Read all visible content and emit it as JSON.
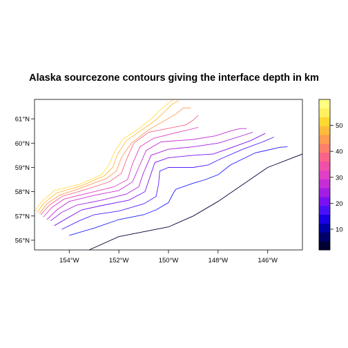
{
  "chart_data": {
    "type": "contour",
    "title": "Alaska sourcezone contours giving the interface depth in km",
    "xlabel": "",
    "ylabel": "",
    "xlim": [
      -155.4,
      -144.6
    ],
    "ylim": [
      55.6,
      61.8
    ],
    "x_ticks": [
      {
        "value": -154,
        "label": "154°W"
      },
      {
        "value": -152,
        "label": "152°W"
      },
      {
        "value": -150,
        "label": "150°W"
      },
      {
        "value": -148,
        "label": "148°W"
      },
      {
        "value": -146,
        "label": "146°W"
      }
    ],
    "y_ticks": [
      {
        "value": 56,
        "label": "56°N"
      },
      {
        "value": 57,
        "label": "57°N"
      },
      {
        "value": 58,
        "label": "58°N"
      },
      {
        "value": 59,
        "label": "59°N"
      },
      {
        "value": 60,
        "label": "60°N"
      },
      {
        "value": 61,
        "label": "61°N"
      }
    ],
    "colorkey": {
      "range": [
        2,
        60
      ],
      "ticks": [
        10,
        20,
        30,
        40,
        50
      ],
      "colors": [
        "#000033",
        "#00006b",
        "#0000a8",
        "#1a00e5",
        "#4a10f5",
        "#7a10f0",
        "#a21ee3",
        "#c42ed4",
        "#e040c4",
        "#f050a8",
        "#fa6488",
        "#fd806a",
        "#fe9c52",
        "#ffbb3c",
        "#ffd830",
        "#fff060",
        "#ffff80"
      ]
    },
    "series": [
      {
        "depth": 0,
        "color": "#000033",
        "points": [
          [
            -153.2,
            55.6
          ],
          [
            -152,
            56.15
          ],
          [
            -150,
            56.55
          ],
          [
            -149,
            57.0
          ],
          [
            -148,
            57.6
          ],
          [
            -147,
            58.3
          ],
          [
            -146,
            59.0
          ],
          [
            -144.6,
            59.55
          ]
        ]
      },
      {
        "depth": 10,
        "color": "#1a1aff",
        "points": [
          [
            -154,
            56.2
          ],
          [
            -153,
            56.5
          ],
          [
            -152,
            56.85
          ],
          [
            -151,
            57.05
          ],
          [
            -150.5,
            57.25
          ],
          [
            -150,
            57.55
          ],
          [
            -149.8,
            57.95
          ],
          [
            -149.7,
            58.1
          ],
          [
            -149,
            58.35
          ],
          [
            -148.5,
            58.5
          ],
          [
            -148,
            58.7
          ],
          [
            -147.5,
            59.1
          ],
          [
            -146.5,
            59.6
          ],
          [
            -145.5,
            59.83
          ],
          [
            -145.2,
            59.85
          ]
        ]
      },
      {
        "depth": 15,
        "color": "#4f1dff",
        "points": [
          [
            -154.3,
            56.45
          ],
          [
            -153.6,
            56.8
          ],
          [
            -153,
            57.05
          ],
          [
            -152,
            57.2
          ],
          [
            -151,
            57.5
          ],
          [
            -150.5,
            57.8
          ],
          [
            -150.4,
            58.3
          ],
          [
            -150.35,
            58.85
          ],
          [
            -150,
            59.0
          ],
          [
            -149,
            59.0
          ],
          [
            -148.4,
            59.1
          ],
          [
            -147.9,
            59.35
          ],
          [
            -147,
            59.75
          ],
          [
            -146.2,
            60.05
          ],
          [
            -145.75,
            60.25
          ]
        ]
      },
      {
        "depth": 20,
        "color": "#7a10f0",
        "points": [
          [
            -154.6,
            56.6
          ],
          [
            -154.1,
            56.9
          ],
          [
            -153.5,
            57.25
          ],
          [
            -152.6,
            57.45
          ],
          [
            -151.6,
            57.65
          ],
          [
            -150.95,
            58.0
          ],
          [
            -150.75,
            58.6
          ],
          [
            -150.55,
            59.2
          ],
          [
            -150,
            59.4
          ],
          [
            -149,
            59.5
          ],
          [
            -148.2,
            59.55
          ],
          [
            -147.5,
            59.8
          ],
          [
            -146.7,
            60.1
          ],
          [
            -146.1,
            60.4
          ]
        ]
      },
      {
        "depth": 25,
        "color": "#a21ee3",
        "points": [
          [
            -154.75,
            56.8
          ],
          [
            -154.3,
            57.15
          ],
          [
            -153.7,
            57.45
          ],
          [
            -152.7,
            57.65
          ],
          [
            -151.7,
            57.9
          ],
          [
            -151.2,
            58.2
          ],
          [
            -151.0,
            58.8
          ],
          [
            -150.7,
            59.5
          ],
          [
            -150,
            59.75
          ],
          [
            -149,
            59.85
          ],
          [
            -148,
            60.0
          ],
          [
            -147.2,
            60.25
          ],
          [
            -146.6,
            60.45
          ]
        ]
      },
      {
        "depth": 30,
        "color": "#c42ed4",
        "points": [
          [
            -154.9,
            56.85
          ],
          [
            -154.5,
            57.25
          ],
          [
            -154,
            57.6
          ],
          [
            -153,
            57.85
          ],
          [
            -152,
            58.05
          ],
          [
            -151.45,
            58.4
          ],
          [
            -151.2,
            59.0
          ],
          [
            -150.9,
            59.7
          ],
          [
            -150.3,
            60.05
          ],
          [
            -149,
            60.15
          ],
          [
            -148.1,
            60.3
          ],
          [
            -147.5,
            60.5
          ],
          [
            -147.1,
            60.6
          ],
          [
            -146.85,
            60.6
          ]
        ]
      },
      {
        "depth": 35,
        "color": "#e040c4",
        "points": [
          [
            -155.05,
            56.95
          ],
          [
            -154.7,
            57.35
          ],
          [
            -154.2,
            57.7
          ],
          [
            -153.2,
            57.95
          ],
          [
            -152.2,
            58.2
          ],
          [
            -151.65,
            58.5
          ],
          [
            -151.45,
            59.15
          ],
          [
            -151.15,
            59.85
          ],
          [
            -150.6,
            60.2
          ],
          [
            -149.8,
            60.4
          ],
          [
            -149.2,
            60.55
          ],
          [
            -148.8,
            60.65
          ]
        ]
      },
      {
        "depth": 40,
        "color": "#fa6488",
        "points": [
          [
            -155.15,
            57.05
          ],
          [
            -154.8,
            57.45
          ],
          [
            -154.3,
            57.8
          ],
          [
            -153.3,
            58.1
          ],
          [
            -152.4,
            58.4
          ],
          [
            -151.9,
            58.75
          ],
          [
            -151.7,
            59.3
          ],
          [
            -151.4,
            60.0
          ],
          [
            -150.8,
            60.45
          ],
          [
            -149.8,
            60.65
          ],
          [
            -149.3,
            60.75
          ],
          [
            -149.0,
            60.95
          ],
          [
            -148.8,
            61.15
          ]
        ]
      },
      {
        "depth": 45,
        "color": "#fe9c52",
        "points": [
          [
            -155.2,
            57.1
          ],
          [
            -154.9,
            57.5
          ],
          [
            -154.4,
            57.85
          ],
          [
            -153.4,
            58.2
          ],
          [
            -152.5,
            58.55
          ],
          [
            -152.1,
            58.85
          ],
          [
            -151.9,
            59.4
          ],
          [
            -151.5,
            60.0
          ],
          [
            -150.8,
            60.55
          ],
          [
            -150.2,
            60.9
          ],
          [
            -149.7,
            61.2
          ],
          [
            -149.4,
            61.45
          ],
          [
            -149.1,
            61.45
          ]
        ]
      },
      {
        "depth": 50,
        "color": "#ffbb3c",
        "points": [
          [
            -155.3,
            57.15
          ],
          [
            -155.0,
            57.55
          ],
          [
            -154.5,
            57.95
          ],
          [
            -153.5,
            58.25
          ],
          [
            -152.6,
            58.65
          ],
          [
            -152.25,
            59.0
          ],
          [
            -152.05,
            59.55
          ],
          [
            -151.7,
            60.1
          ],
          [
            -151.0,
            60.6
          ],
          [
            -150.45,
            61.0
          ],
          [
            -150.1,
            61.35
          ],
          [
            -149.85,
            61.6
          ],
          [
            -149.6,
            61.75
          ]
        ]
      },
      {
        "depth": 55,
        "color": "#ffe04a",
        "points": [
          [
            -155.4,
            57.2
          ],
          [
            -155.1,
            57.6
          ],
          [
            -154.6,
            58.05
          ],
          [
            -153.6,
            58.3
          ],
          [
            -152.7,
            58.7
          ],
          [
            -152.4,
            59.1
          ],
          [
            -152.2,
            59.6
          ],
          [
            -151.85,
            60.15
          ],
          [
            -151.2,
            60.6
          ],
          [
            -150.7,
            61.0
          ],
          [
            -150.35,
            61.35
          ],
          [
            -150.0,
            61.65
          ],
          [
            -149.8,
            61.8
          ]
        ]
      }
    ]
  }
}
